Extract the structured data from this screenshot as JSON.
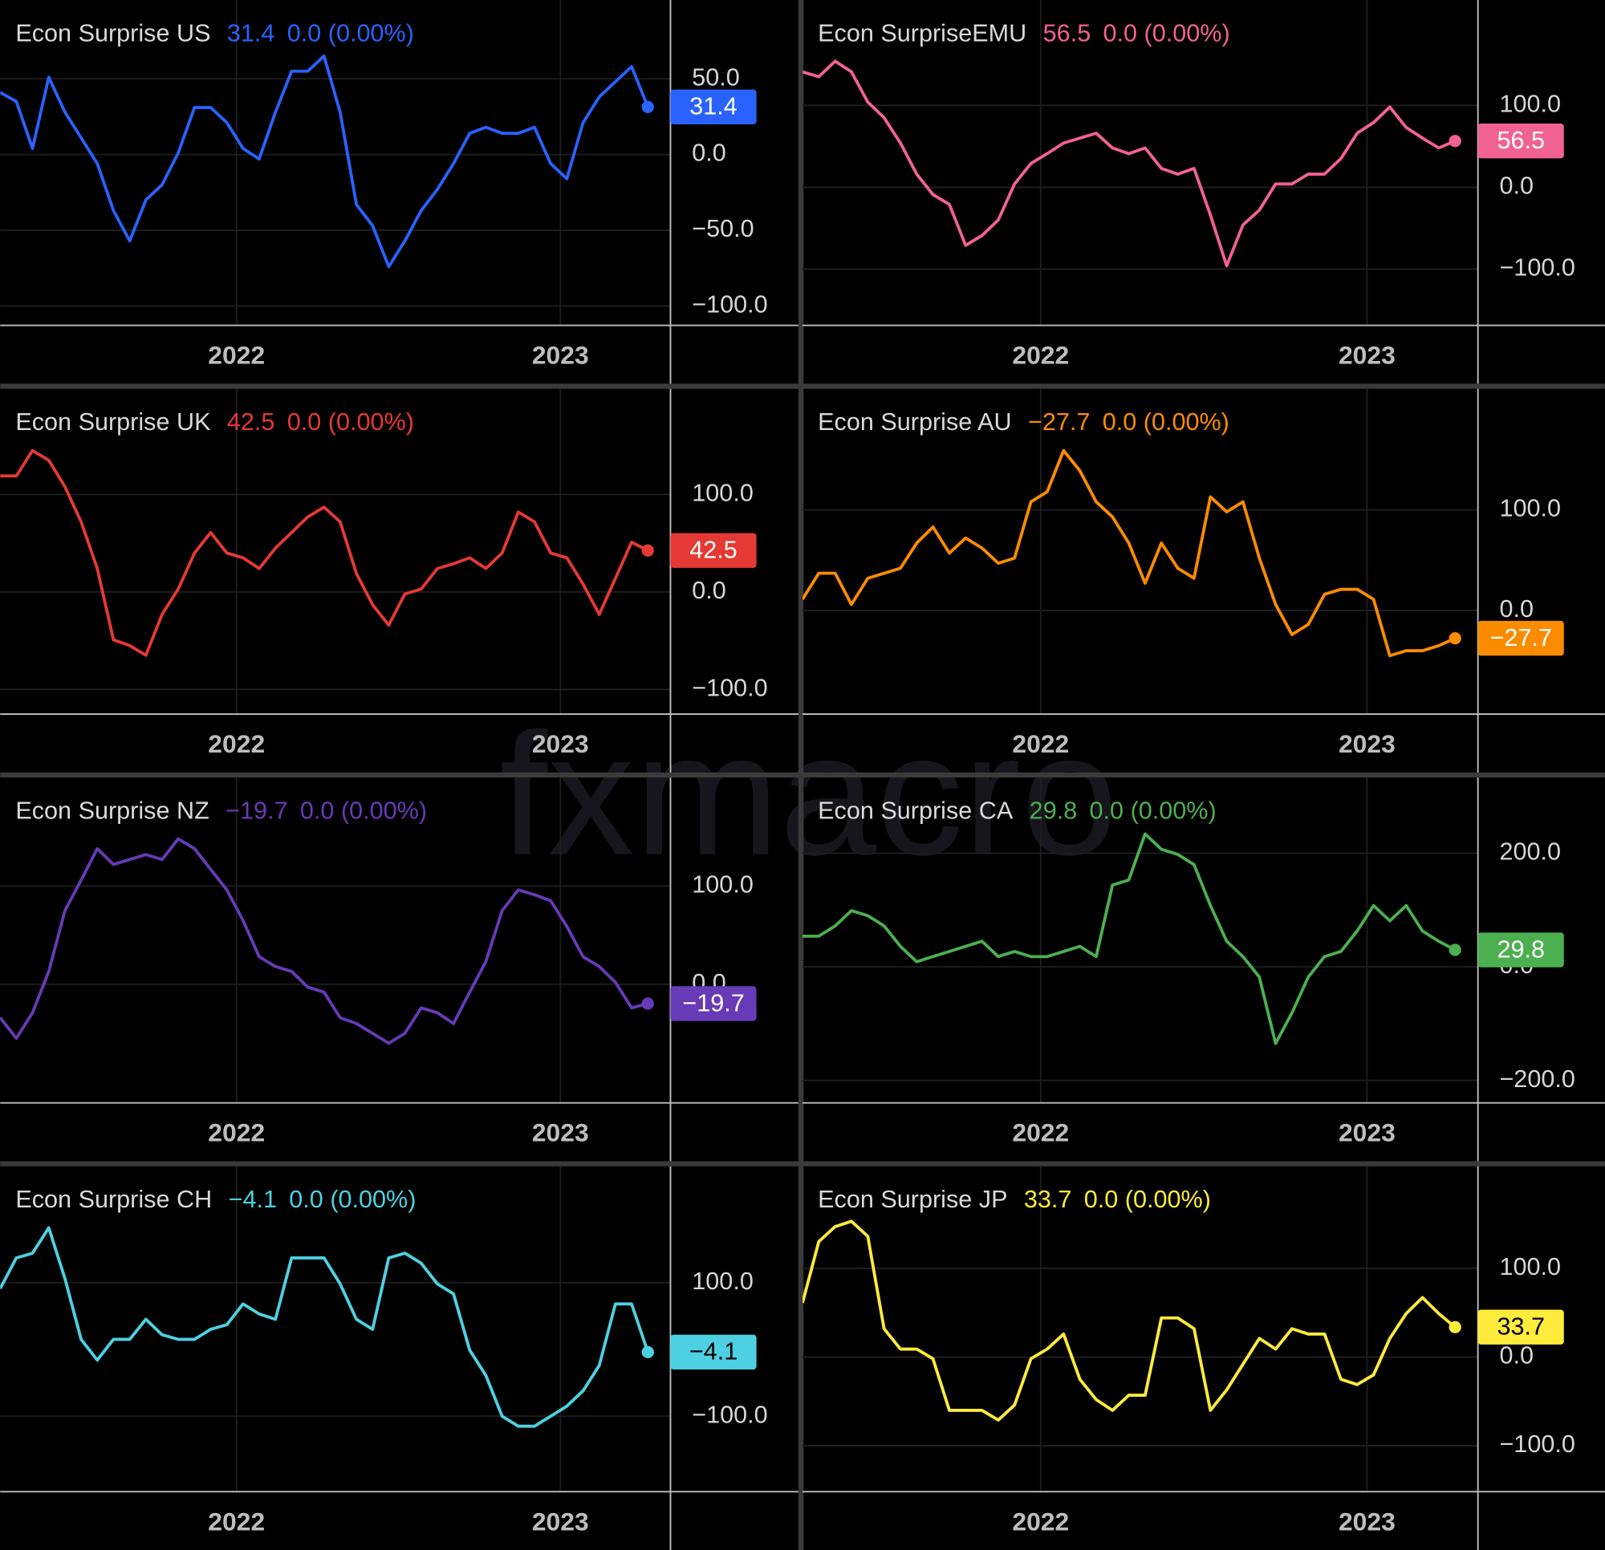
{
  "watermark": "fxmacro",
  "chart_data": [
    {
      "type": "line",
      "title": "Econ Surprise US",
      "last_label": "31.4",
      "change_label": "0.0 (0.00%)",
      "color": "#2962ff",
      "x": [
        2021.27,
        2021.32,
        2021.37,
        2021.42,
        2021.47,
        2021.52,
        2021.57,
        2021.62,
        2021.67,
        2021.72,
        2021.77,
        2021.82,
        2021.87,
        2021.92,
        2021.97,
        2022.02,
        2022.07,
        2022.12,
        2022.17,
        2022.22,
        2022.27,
        2022.32,
        2022.37,
        2022.42,
        2022.47,
        2022.52,
        2022.57,
        2022.62,
        2022.67,
        2022.72,
        2022.77,
        2022.82,
        2022.87,
        2022.92,
        2022.97,
        2023.02,
        2023.07,
        2023.12,
        2023.17,
        2023.22,
        2023.27
      ],
      "values": [
        41,
        35,
        4,
        51,
        28,
        11,
        -6,
        -37,
        -57,
        -30,
        -20,
        1,
        31,
        31,
        21,
        4,
        -3,
        28,
        55,
        55,
        65,
        28,
        -33,
        -47,
        -74,
        -57,
        -37,
        -23,
        -6,
        14,
        18,
        14,
        14,
        18,
        -6,
        -16,
        21,
        38,
        48,
        58,
        31.4
      ],
      "xlim": [
        2021.27,
        2023.34
      ],
      "xticks": [
        2022,
        2023
      ],
      "ylim": [
        -112.8,
        102.0
      ],
      "yticks": [
        {
          "value": 50,
          "label": "50.0"
        },
        {
          "value": 0,
          "label": "0.0"
        },
        {
          "value": -50,
          "label": "−50.0"
        },
        {
          "value": -100,
          "label": "−100.0"
        }
      ]
    },
    {
      "type": "line",
      "title": "Econ SurpriseEMU",
      "last_label": "56.5",
      "change_label": "0.0 (0.00%)",
      "color": "#f06292",
      "x": [
        2021.27,
        2021.32,
        2021.37,
        2021.42,
        2021.47,
        2021.52,
        2021.57,
        2021.62,
        2021.67,
        2021.72,
        2021.77,
        2021.82,
        2021.87,
        2021.92,
        2021.97,
        2022.02,
        2022.07,
        2022.12,
        2022.17,
        2022.22,
        2022.27,
        2022.32,
        2022.37,
        2022.42,
        2022.47,
        2022.52,
        2022.57,
        2022.62,
        2022.67,
        2022.72,
        2022.77,
        2022.82,
        2022.87,
        2022.92,
        2022.97,
        2023.02,
        2023.07,
        2023.12,
        2023.17,
        2023.22,
        2023.27
      ],
      "values": [
        141,
        135,
        154,
        141,
        104,
        85,
        54,
        16,
        -9,
        -21,
        -71,
        -59,
        -40,
        4,
        29,
        41,
        54,
        60,
        66,
        48,
        41,
        48,
        23,
        16,
        23,
        -34,
        -96,
        -46,
        -28,
        4,
        4,
        16,
        16,
        35,
        66,
        79,
        98,
        73,
        60,
        48,
        56.5
      ],
      "xlim": [
        2021.27,
        2023.34
      ],
      "xticks": [
        2022,
        2023
      ],
      "ylim": [
        -168.8,
        228.8
      ],
      "yticks": [
        {
          "value": 100,
          "label": "100.0"
        },
        {
          "value": 0,
          "label": "0.0"
        },
        {
          "value": -100,
          "label": "−100.0"
        }
      ]
    },
    {
      "type": "line",
      "title": "Econ Surprise UK",
      "last_label": "42.5",
      "change_label": "0.0 (0.00%)",
      "color": "#e53935",
      "x": [
        2021.27,
        2021.32,
        2021.37,
        2021.42,
        2021.47,
        2021.52,
        2021.57,
        2021.62,
        2021.67,
        2021.72,
        2021.77,
        2021.82,
        2021.87,
        2021.92,
        2021.97,
        2022.02,
        2022.07,
        2022.12,
        2022.17,
        2022.22,
        2022.27,
        2022.32,
        2022.37,
        2022.42,
        2022.47,
        2022.52,
        2022.57,
        2022.62,
        2022.67,
        2022.72,
        2022.77,
        2022.82,
        2022.87,
        2022.92,
        2022.97,
        2023.02,
        2023.07,
        2023.12,
        2023.17,
        2023.22,
        2023.27
      ],
      "values": [
        119,
        119,
        145,
        135,
        108,
        72,
        24,
        -49,
        -55,
        -65,
        -23,
        3,
        40,
        61,
        40,
        35,
        24,
        45,
        61,
        77,
        87,
        72,
        19,
        -13,
        -34,
        -2,
        3,
        24,
        29,
        35,
        24,
        40,
        82,
        72,
        40,
        35,
        8,
        -23,
        14,
        51,
        42.5
      ],
      "xlim": [
        2021.27,
        2023.34
      ],
      "xticks": [
        2022,
        2023
      ],
      "ylim": [
        -125.3,
        208.4
      ],
      "yticks": [
        {
          "value": 100,
          "label": "100.0"
        },
        {
          "value": 0,
          "label": "0.0"
        },
        {
          "value": -100,
          "label": "−100.0"
        }
      ]
    },
    {
      "type": "line",
      "title": "Econ Surprise AU",
      "last_label": "−27.7",
      "change_label": "0.0 (0.00%)",
      "color": "#fb8c00",
      "x": [
        2021.27,
        2021.32,
        2021.37,
        2021.42,
        2021.47,
        2021.52,
        2021.57,
        2021.62,
        2021.67,
        2021.72,
        2021.77,
        2021.82,
        2021.87,
        2021.92,
        2021.97,
        2022.02,
        2022.07,
        2022.12,
        2022.17,
        2022.22,
        2022.27,
        2022.32,
        2022.37,
        2022.42,
        2022.47,
        2022.52,
        2022.57,
        2022.62,
        2022.67,
        2022.72,
        2022.77,
        2022.82,
        2022.87,
        2022.92,
        2022.97,
        2023.02,
        2023.07,
        2023.12,
        2023.17,
        2023.22,
        2023.27
      ],
      "values": [
        11,
        37,
        37,
        6,
        32,
        37,
        42,
        67,
        83,
        57,
        72,
        62,
        47,
        52,
        108,
        118,
        159,
        139,
        108,
        93,
        67,
        27,
        67,
        42,
        32,
        113,
        98,
        108,
        52,
        6,
        -24,
        -14,
        16,
        21,
        21,
        11,
        -45,
        -40,
        -40,
        -35,
        -27.7
      ],
      "xlim": [
        2021.27,
        2023.34
      ],
      "xticks": [
        2022,
        2023
      ],
      "ylim": [
        -103.1,
        220.4
      ],
      "yticks": [
        {
          "value": 100,
          "label": "100.0"
        },
        {
          "value": 0,
          "label": "0.0"
        }
      ]
    },
    {
      "type": "line",
      "title": "Econ Surprise NZ",
      "last_label": "−19.7",
      "change_label": "0.0 (0.00%)",
      "color": "#673ab7",
      "x": [
        2021.27,
        2021.32,
        2021.37,
        2021.42,
        2021.47,
        2021.52,
        2021.57,
        2021.62,
        2021.67,
        2021.72,
        2021.77,
        2021.82,
        2021.87,
        2021.92,
        2021.97,
        2022.02,
        2022.07,
        2022.12,
        2022.17,
        2022.22,
        2022.27,
        2022.32,
        2022.37,
        2022.42,
        2022.47,
        2022.52,
        2022.57,
        2022.62,
        2022.67,
        2022.72,
        2022.77,
        2022.82,
        2022.87,
        2022.92,
        2022.97,
        2023.02,
        2023.07,
        2023.12,
        2023.17,
        2023.22,
        2023.27
      ],
      "values": [
        -34,
        -55,
        -29,
        13,
        75,
        106,
        138,
        122,
        127,
        132,
        127,
        148,
        138,
        117,
        96,
        65,
        28,
        18,
        13,
        -3,
        -8,
        -34,
        -40,
        -50,
        -60,
        -50,
        -24,
        -29,
        -40,
        -8,
        23,
        75,
        96,
        91,
        85,
        59,
        28,
        18,
        2,
        -24,
        -19.7
      ],
      "xlim": [
        2021.27,
        2023.34
      ],
      "xticks": [
        2022,
        2023
      ],
      "ylim": [
        -120.8,
        210.4
      ],
      "yticks": [
        {
          "value": 100,
          "label": "100.0"
        },
        {
          "value": 0,
          "label": "0.0"
        }
      ]
    },
    {
      "type": "line",
      "title": "Econ Surprise CA",
      "last_label": "29.8",
      "change_label": "0.0 (0.00%)",
      "color": "#4caf50",
      "x": [
        2021.27,
        2021.32,
        2021.37,
        2021.42,
        2021.47,
        2021.52,
        2021.57,
        2021.62,
        2021.67,
        2021.72,
        2021.77,
        2021.82,
        2021.87,
        2021.92,
        2021.97,
        2022.02,
        2022.07,
        2022.12,
        2022.17,
        2022.22,
        2022.27,
        2022.32,
        2022.37,
        2022.42,
        2022.47,
        2022.52,
        2022.57,
        2022.62,
        2022.67,
        2022.72,
        2022.77,
        2022.82,
        2022.87,
        2022.92,
        2022.97,
        2023.02,
        2023.07,
        2023.12,
        2023.17,
        2023.22,
        2023.27
      ],
      "values": [
        54,
        54,
        72,
        99,
        90,
        72,
        36,
        9,
        18,
        27,
        36,
        45,
        18,
        27,
        18,
        18,
        27,
        36,
        18,
        144,
        153,
        234,
        207,
        198,
        180,
        108,
        45,
        18,
        -18,
        -135,
        -81,
        -18,
        18,
        27,
        63,
        108,
        81,
        108,
        63,
        45,
        29.8
      ],
      "xlim": [
        2021.27,
        2023.34
      ],
      "xticks": [
        2022,
        2023
      ],
      "ylim": [
        -239.6,
        333.3
      ],
      "yticks": [
        {
          "value": 200,
          "label": "200.0"
        },
        {
          "value": 0,
          "label": "0.0"
        },
        {
          "value": -200,
          "label": "−200.0"
        }
      ]
    },
    {
      "type": "line",
      "title": "Econ Surprise CH",
      "last_label": "−4.1",
      "change_label": "0.0 (0.00%)",
      "color": "#4dd0e1",
      "x": [
        2021.27,
        2021.32,
        2021.37,
        2021.42,
        2021.47,
        2021.52,
        2021.57,
        2021.62,
        2021.67,
        2021.72,
        2021.77,
        2021.82,
        2021.87,
        2021.92,
        2021.97,
        2022.02,
        2022.07,
        2022.12,
        2022.17,
        2022.22,
        2022.27,
        2022.32,
        2022.37,
        2022.42,
        2022.47,
        2022.52,
        2022.57,
        2022.62,
        2022.67,
        2022.72,
        2022.77,
        2022.82,
        2022.87,
        2022.92,
        2022.97,
        2023.02,
        2023.07,
        2023.12,
        2023.17,
        2023.22,
        2023.27
      ],
      "values": [
        91,
        137,
        144,
        182,
        106,
        15,
        -16,
        15,
        15,
        45,
        22,
        15,
        15,
        30,
        37,
        68,
        53,
        45,
        137,
        137,
        137,
        98,
        45,
        30,
        137,
        144,
        129,
        98,
        83,
        -1,
        -39,
        -100,
        -115,
        -115,
        -100,
        -85,
        -62,
        -24,
        68,
        68,
        -4.1
      ],
      "xlim": [
        2021.27,
        2023.34
      ],
      "xticks": [
        2022,
        2023
      ],
      "ylim": [
        -213.0,
        274.0
      ],
      "yticks": [
        {
          "value": 100,
          "label": "100.0"
        },
        {
          "value": -100,
          "label": "−100.0"
        }
      ]
    },
    {
      "type": "line",
      "title": "Econ Surprise JP",
      "last_label": "33.7",
      "change_label": "0.0 (0.00%)",
      "color": "#ffeb3b",
      "x": [
        2021.27,
        2021.32,
        2021.37,
        2021.42,
        2021.47,
        2021.52,
        2021.57,
        2021.62,
        2021.67,
        2021.72,
        2021.77,
        2021.82,
        2021.87,
        2021.92,
        2021.97,
        2022.02,
        2022.07,
        2022.12,
        2022.17,
        2022.22,
        2022.27,
        2022.32,
        2022.37,
        2022.42,
        2022.47,
        2022.52,
        2022.57,
        2022.62,
        2022.67,
        2022.72,
        2022.77,
        2022.82,
        2022.87,
        2022.92,
        2022.97,
        2023.02,
        2023.07,
        2023.12,
        2023.17,
        2023.22,
        2023.27
      ],
      "values": [
        61,
        130,
        147,
        153,
        136,
        32,
        9,
        9,
        -2,
        -60,
        -60,
        -60,
        -71,
        -54,
        -2,
        9,
        26,
        -25,
        -48,
        -60,
        -43,
        -43,
        44,
        44,
        32,
        -60,
        -37,
        -8,
        21,
        9,
        32,
        26,
        26,
        -25,
        -31,
        -20,
        21,
        49,
        67,
        49,
        33.7
      ],
      "xlim": [
        2021.27,
        2023.34
      ],
      "xticks": [
        2022,
        2023
      ],
      "ylim": [
        -151.7,
        214.9
      ],
      "yticks": [
        {
          "value": 100,
          "label": "100.0"
        },
        {
          "value": 0,
          "label": "0.0"
        },
        {
          "value": -100,
          "label": "−100.0"
        }
      ]
    }
  ]
}
